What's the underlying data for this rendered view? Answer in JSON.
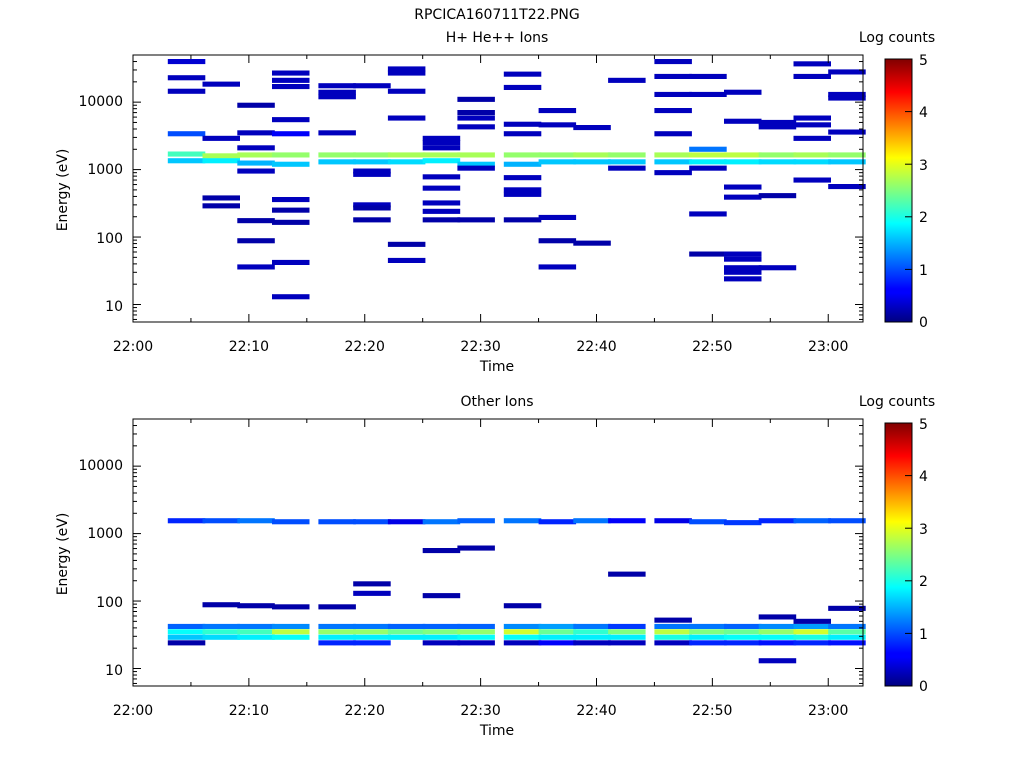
{
  "figure": {
    "title": "RPCICA160711T22.PNG"
  },
  "chart_data": [
    {
      "type": "heatmap",
      "title": "H+ He++ Ions",
      "xlabel": "Time",
      "ylabel": "Energy (eV)",
      "yscale": "log",
      "ylim": [
        5.5,
        50000
      ],
      "xlim_minutes": [
        0,
        63
      ],
      "x_ticks": [
        "22:00",
        "22:10",
        "22:20",
        "22:30",
        "22:40",
        "22:50",
        "23:00"
      ],
      "y_ticks": [
        "10",
        "100",
        "1000",
        "10000"
      ],
      "colorbar": {
        "label": "Log counts",
        "ticks": [
          "0",
          "1",
          "2",
          "3",
          "4",
          "5"
        ],
        "range": [
          0,
          5
        ]
      },
      "time_bins": [
        "22:03",
        "22:06",
        "22:09",
        "22:12",
        "22:16",
        "22:19",
        "22:22",
        "22:25",
        "22:28",
        "22:32",
        "22:35",
        "22:38",
        "22:41",
        "22:45",
        "22:48",
        "22:51",
        "22:54",
        "22:57",
        "23:00"
      ],
      "cells": [
        [
          0,
          1700,
          2.2
        ],
        [
          0,
          1350,
          1.6
        ],
        [
          0,
          3400,
          1.0
        ],
        [
          0,
          40000,
          0.4
        ],
        [
          0,
          23000,
          0.3
        ],
        [
          0,
          14500,
          0.3
        ],
        [
          1,
          1600,
          2.7
        ],
        [
          1,
          1350,
          1.8
        ],
        [
          1,
          18500,
          0.3
        ],
        [
          1,
          2900,
          0.3
        ],
        [
          1,
          380,
          0.2
        ],
        [
          1,
          290,
          0.2
        ],
        [
          2,
          1650,
          2.7
        ],
        [
          2,
          1250,
          1.5
        ],
        [
          2,
          9000,
          0.2
        ],
        [
          2,
          3500,
          0.3
        ],
        [
          2,
          2100,
          0.3
        ],
        [
          2,
          950,
          0.3
        ],
        [
          2,
          175,
          0.2
        ],
        [
          2,
          88,
          0.2
        ],
        [
          2,
          36,
          0.3
        ],
        [
          3,
          1650,
          2.6
        ],
        [
          3,
          1200,
          1.6
        ],
        [
          3,
          27000,
          0.3
        ],
        [
          3,
          21000,
          0.3
        ],
        [
          3,
          17000,
          0.3
        ],
        [
          3,
          5500,
          0.3
        ],
        [
          3,
          3400,
          0.6
        ],
        [
          3,
          360,
          0.3
        ],
        [
          3,
          250,
          0.2
        ],
        [
          3,
          165,
          0.2
        ],
        [
          3,
          42,
          0.3
        ],
        [
          3,
          13,
          0.3
        ],
        [
          4,
          1650,
          2.6
        ],
        [
          4,
          1300,
          1.6
        ],
        [
          4,
          17500,
          0.3
        ],
        [
          4,
          14000,
          0.3
        ],
        [
          4,
          12000,
          0.3
        ],
        [
          4,
          3500,
          0.3
        ],
        [
          5,
          1650,
          2.6
        ],
        [
          5,
          1300,
          1.6
        ],
        [
          5,
          17500,
          0.3
        ],
        [
          5,
          950,
          0.3
        ],
        [
          5,
          850,
          0.3
        ],
        [
          5,
          300,
          0.3
        ],
        [
          5,
          270,
          0.2
        ],
        [
          5,
          180,
          0.2
        ],
        [
          6,
          1650,
          2.7
        ],
        [
          6,
          1300,
          1.7
        ],
        [
          6,
          31000,
          0.3
        ],
        [
          6,
          27000,
          0.3
        ],
        [
          6,
          14500,
          0.3
        ],
        [
          6,
          5800,
          0.3
        ],
        [
          6,
          78,
          0.2
        ],
        [
          6,
          45,
          0.3
        ],
        [
          7,
          1650,
          2.7
        ],
        [
          7,
          1350,
          1.8
        ],
        [
          7,
          2900,
          0.3
        ],
        [
          7,
          2500,
          0.3
        ],
        [
          7,
          2100,
          0.3
        ],
        [
          7,
          780,
          0.3
        ],
        [
          7,
          530,
          0.3
        ],
        [
          7,
          320,
          0.3
        ],
        [
          7,
          240,
          0.3
        ],
        [
          7,
          180,
          0.2
        ],
        [
          8,
          1650,
          2.7
        ],
        [
          8,
          1200,
          1.6
        ],
        [
          8,
          11000,
          0.2
        ],
        [
          8,
          7000,
          0.2
        ],
        [
          8,
          5800,
          0.3
        ],
        [
          8,
          4300,
          0.3
        ],
        [
          8,
          1050,
          0.3
        ],
        [
          8,
          180,
          0.2
        ],
        [
          9,
          1650,
          2.6
        ],
        [
          9,
          1200,
          1.5
        ],
        [
          9,
          26000,
          0.3
        ],
        [
          9,
          16500,
          0.3
        ],
        [
          9,
          4700,
          0.3
        ],
        [
          9,
          3400,
          0.3
        ],
        [
          9,
          760,
          0.3
        ],
        [
          9,
          500,
          0.3
        ],
        [
          9,
          430,
          0.3
        ],
        [
          9,
          180,
          0.2
        ],
        [
          10,
          1650,
          2.6
        ],
        [
          10,
          1300,
          1.6
        ],
        [
          10,
          7500,
          0.3
        ],
        [
          10,
          4600,
          0.3
        ],
        [
          10,
          195,
          0.3
        ],
        [
          10,
          88,
          0.2
        ],
        [
          10,
          36,
          0.3
        ],
        [
          11,
          1650,
          2.7
        ],
        [
          11,
          1300,
          1.6
        ],
        [
          11,
          4200,
          0.3
        ],
        [
          11,
          81,
          0.2
        ],
        [
          12,
          1650,
          2.6
        ],
        [
          12,
          1300,
          1.6
        ],
        [
          12,
          21000,
          0.3
        ],
        [
          12,
          1050,
          0.3
        ],
        [
          13,
          1650,
          2.7
        ],
        [
          13,
          1300,
          1.6
        ],
        [
          13,
          40000,
          0.3
        ],
        [
          13,
          24000,
          0.3
        ],
        [
          13,
          13000,
          0.3
        ],
        [
          13,
          7500,
          0.3
        ],
        [
          13,
          3400,
          0.3
        ],
        [
          13,
          900,
          0.3
        ],
        [
          14,
          1650,
          2.8
        ],
        [
          14,
          2000,
          1.2
        ],
        [
          14,
          1300,
          1.8
        ],
        [
          14,
          24000,
          0.3
        ],
        [
          14,
          13000,
          0.3
        ],
        [
          14,
          1050,
          0.3
        ],
        [
          14,
          220,
          0.3
        ],
        [
          14,
          56,
          0.2
        ],
        [
          15,
          1650,
          2.8
        ],
        [
          15,
          1300,
          1.8
        ],
        [
          15,
          14000,
          0.3
        ],
        [
          15,
          5200,
          0.3
        ],
        [
          15,
          550,
          0.3
        ],
        [
          15,
          390,
          0.3
        ],
        [
          15,
          56,
          0.3
        ],
        [
          15,
          47,
          0.3
        ],
        [
          15,
          35,
          0.3
        ],
        [
          15,
          30,
          0.3
        ],
        [
          15,
          24,
          0.3
        ],
        [
          16,
          1650,
          2.6
        ],
        [
          16,
          1300,
          1.7
        ],
        [
          16,
          5000,
          0.3
        ],
        [
          16,
          4300,
          0.3
        ],
        [
          16,
          410,
          0.2
        ],
        [
          16,
          35,
          0.3
        ],
        [
          17,
          1650,
          2.7
        ],
        [
          17,
          1300,
          1.7
        ],
        [
          17,
          37000,
          0.3
        ],
        [
          17,
          24000,
          0.3
        ],
        [
          17,
          5800,
          0.3
        ],
        [
          17,
          4600,
          0.3
        ],
        [
          17,
          2900,
          0.3
        ],
        [
          17,
          700,
          0.3
        ],
        [
          18,
          1650,
          2.6
        ],
        [
          18,
          1300,
          1.6
        ],
        [
          18,
          28000,
          0.3
        ],
        [
          18,
          13000,
          0.3
        ],
        [
          18,
          11500,
          0.3
        ],
        [
          18,
          3600,
          0.3
        ],
        [
          18,
          560,
          0.3
        ]
      ]
    },
    {
      "type": "heatmap",
      "title": "Other Ions",
      "xlabel": "Time",
      "ylabel": "Energy (eV)",
      "yscale": "log",
      "ylim": [
        5.5,
        50000
      ],
      "xlim_minutes": [
        0,
        63
      ],
      "x_ticks": [
        "22:00",
        "22:10",
        "22:20",
        "22:30",
        "22:40",
        "22:50",
        "23:00"
      ],
      "y_ticks": [
        "10",
        "100",
        "1000",
        "10000"
      ],
      "colorbar": {
        "label": "Log counts",
        "ticks": [
          "0",
          "1",
          "2",
          "3",
          "4",
          "5"
        ],
        "range": [
          0,
          5
        ]
      },
      "time_bins": [
        "22:03",
        "22:06",
        "22:09",
        "22:12",
        "22:16",
        "22:19",
        "22:22",
        "22:25",
        "22:28",
        "22:32",
        "22:35",
        "22:38",
        "22:41",
        "22:45",
        "22:48",
        "22:51",
        "22:54",
        "22:57",
        "23:00"
      ],
      "cells": [
        [
          0,
          1550,
          0.8
        ],
        [
          0,
          35,
          1.9
        ],
        [
          0,
          29,
          1.6
        ],
        [
          0,
          42,
          1.1
        ],
        [
          0,
          24,
          0.2
        ],
        [
          1,
          1550,
          1.0
        ],
        [
          1,
          35,
          2.1
        ],
        [
          1,
          29,
          1.7
        ],
        [
          1,
          42,
          1.2
        ],
        [
          1,
          88,
          0.2
        ],
        [
          2,
          1550,
          1.2
        ],
        [
          2,
          35,
          2.2
        ],
        [
          2,
          29,
          1.8
        ],
        [
          2,
          42,
          1.2
        ],
        [
          2,
          85,
          0.2
        ],
        [
          3,
          1500,
          1.0
        ],
        [
          3,
          35,
          2.8
        ],
        [
          3,
          29,
          1.9
        ],
        [
          3,
          42,
          1.3
        ],
        [
          3,
          82,
          0.2
        ],
        [
          4,
          1500,
          1.0
        ],
        [
          4,
          35,
          2.6
        ],
        [
          4,
          29,
          1.8
        ],
        [
          4,
          42,
          1.2
        ],
        [
          4,
          24,
          0.8
        ],
        [
          4,
          82,
          0.2
        ],
        [
          5,
          1500,
          1.0
        ],
        [
          5,
          35,
          2.6
        ],
        [
          5,
          29,
          1.8
        ],
        [
          5,
          42,
          1.2
        ],
        [
          5,
          24,
          0.8
        ],
        [
          5,
          180,
          0.2
        ],
        [
          5,
          130,
          0.3
        ],
        [
          6,
          1500,
          0.5
        ],
        [
          6,
          35,
          2.4
        ],
        [
          6,
          29,
          1.8
        ],
        [
          6,
          42,
          1.1
        ],
        [
          7,
          1500,
          1.2
        ],
        [
          7,
          35,
          2.5
        ],
        [
          7,
          29,
          1.8
        ],
        [
          7,
          42,
          1.1
        ],
        [
          7,
          24,
          0.3
        ],
        [
          7,
          560,
          0.2
        ],
        [
          7,
          120,
          0.2
        ],
        [
          8,
          1550,
          1.1
        ],
        [
          8,
          35,
          2.6
        ],
        [
          8,
          29,
          1.9
        ],
        [
          8,
          42,
          1.1
        ],
        [
          8,
          24,
          0.3
        ],
        [
          8,
          610,
          0.2
        ],
        [
          9,
          1550,
          1.2
        ],
        [
          9,
          35,
          2.9
        ],
        [
          9,
          29,
          1.9
        ],
        [
          9,
          42,
          1.3
        ],
        [
          9,
          24,
          0.3
        ],
        [
          9,
          85,
          0.2
        ],
        [
          10,
          1500,
          0.8
        ],
        [
          10,
          35,
          2.4
        ],
        [
          10,
          29,
          1.8
        ],
        [
          10,
          42,
          1.4
        ],
        [
          10,
          24,
          0.6
        ],
        [
          11,
          1550,
          1.2
        ],
        [
          11,
          35,
          2.1
        ],
        [
          11,
          29,
          1.8
        ],
        [
          11,
          42,
          1.2
        ],
        [
          11,
          24,
          0.3
        ],
        [
          12,
          1550,
          0.6
        ],
        [
          12,
          35,
          2.5
        ],
        [
          12,
          29,
          1.8
        ],
        [
          12,
          42,
          0.9
        ],
        [
          12,
          24,
          0.3
        ],
        [
          12,
          250,
          0.2
        ],
        [
          13,
          1550,
          0.5
        ],
        [
          13,
          35,
          2.8
        ],
        [
          13,
          29,
          2.0
        ],
        [
          13,
          42,
          1.2
        ],
        [
          13,
          24,
          0.3
        ],
        [
          13,
          52,
          0.2
        ],
        [
          14,
          1500,
          1.0
        ],
        [
          14,
          35,
          2.5
        ],
        [
          14,
          29,
          1.8
        ],
        [
          14,
          42,
          1.2
        ],
        [
          14,
          24,
          0.8
        ],
        [
          15,
          1450,
          0.9
        ],
        [
          15,
          35,
          2.4
        ],
        [
          15,
          29,
          1.9
        ],
        [
          15,
          42,
          1.1
        ],
        [
          15,
          24,
          0.8
        ],
        [
          16,
          1550,
          0.8
        ],
        [
          16,
          35,
          2.6
        ],
        [
          16,
          29,
          1.9
        ],
        [
          16,
          42,
          1.3
        ],
        [
          16,
          24,
          0.7
        ],
        [
          16,
          13,
          0.3
        ],
        [
          16,
          58,
          0.2
        ],
        [
          17,
          1550,
          1.1
        ],
        [
          17,
          35,
          2.9
        ],
        [
          17,
          29,
          2.0
        ],
        [
          17,
          42,
          1.4
        ],
        [
          17,
          24,
          0.8
        ],
        [
          17,
          50,
          0.2
        ],
        [
          18,
          1550,
          1.0
        ],
        [
          18,
          35,
          2.3
        ],
        [
          18,
          29,
          1.8
        ],
        [
          18,
          42,
          1.2
        ],
        [
          18,
          24,
          0.7
        ],
        [
          18,
          78,
          0.2
        ]
      ]
    }
  ]
}
